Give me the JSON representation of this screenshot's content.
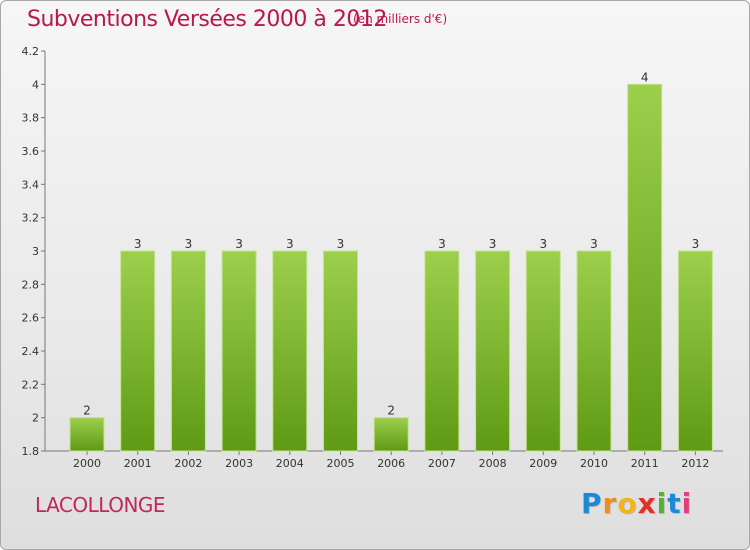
{
  "chart_data": {
    "type": "bar",
    "title": "Subventions Versées 2000 à 2012",
    "subtitle": "(en milliers d'€)",
    "categories": [
      "2000",
      "2001",
      "2002",
      "2003",
      "2004",
      "2005",
      "2006",
      "2007",
      "2008",
      "2009",
      "2010",
      "2011",
      "2012"
    ],
    "values": [
      2,
      3,
      3,
      3,
      3,
      3,
      2,
      3,
      3,
      3,
      3,
      4,
      3
    ],
    "value_labels": [
      "2",
      "3",
      "3",
      "3",
      "3",
      "3",
      "2",
      "3",
      "3",
      "3",
      "3",
      "4",
      "3"
    ],
    "ylim": [
      1.8,
      4.2
    ],
    "yticks": [
      1.8,
      2,
      2.2,
      2.4,
      2.6,
      2.8,
      3,
      3.2,
      3.4,
      3.6,
      3.8,
      4,
      4.2
    ],
    "ytick_labels": [
      "1.8",
      "2",
      "2.2",
      "2.4",
      "2.6",
      "2.8",
      "3",
      "3.2",
      "3.4",
      "3.6",
      "3.8",
      "4",
      "4.2"
    ],
    "grid": false,
    "colors": {
      "bar_top": "#9ccf4c",
      "bar_bottom": "#5f9a14",
      "bar_edge": "#c4e390",
      "title": "#b8174f"
    }
  },
  "commune": "LACOLLONGE",
  "logo": {
    "letters": [
      "P",
      "r",
      "o",
      "x",
      "i",
      "t",
      "i"
    ]
  }
}
